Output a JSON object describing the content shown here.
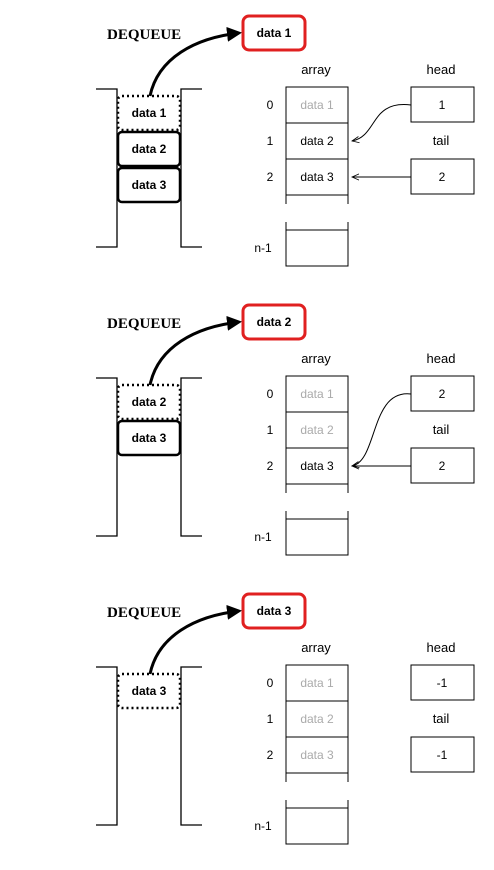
{
  "panels": [
    {
      "title": "DEQUEUE",
      "dequeued": "data 1",
      "stack": [
        {
          "label": "data 1",
          "dotted": true
        },
        {
          "label": "data 2",
          "dotted": false
        },
        {
          "label": "data 3",
          "dotted": false
        }
      ],
      "array_label": "array",
      "array_cells": [
        {
          "index": "0",
          "value": "data 1",
          "faded": true
        },
        {
          "index": "1",
          "value": "data 2",
          "faded": false
        },
        {
          "index": "2",
          "value": "data 3",
          "faded": false
        }
      ],
      "last_index": "n-1",
      "head_label": "head",
      "head_value": "1",
      "head_points_to": 1,
      "tail_label": "tail",
      "tail_value": "2",
      "tail_points_to": 2
    },
    {
      "title": "DEQUEUE",
      "dequeued": "data 2",
      "stack": [
        {
          "label": "data 2",
          "dotted": true
        },
        {
          "label": "data 3",
          "dotted": false
        }
      ],
      "array_label": "array",
      "array_cells": [
        {
          "index": "0",
          "value": "data 1",
          "faded": true
        },
        {
          "index": "1",
          "value": "data 2",
          "faded": true
        },
        {
          "index": "2",
          "value": "data 3",
          "faded": false
        }
      ],
      "last_index": "n-1",
      "head_label": "head",
      "head_value": "2",
      "head_points_to": 2,
      "tail_label": "tail",
      "tail_value": "2",
      "tail_points_to": 2
    },
    {
      "title": "DEQUEUE",
      "dequeued": "data 3",
      "stack": [
        {
          "label": "data 3",
          "dotted": true
        }
      ],
      "array_label": "array",
      "array_cells": [
        {
          "index": "0",
          "value": "data 1",
          "faded": true
        },
        {
          "index": "1",
          "value": "data 2",
          "faded": true
        },
        {
          "index": "2",
          "value": "data 3",
          "faded": true
        }
      ],
      "last_index": "n-1",
      "head_label": "head",
      "head_value": "-1",
      "head_points_to": null,
      "tail_label": "tail",
      "tail_value": "-1",
      "tail_points_to": null
    }
  ]
}
